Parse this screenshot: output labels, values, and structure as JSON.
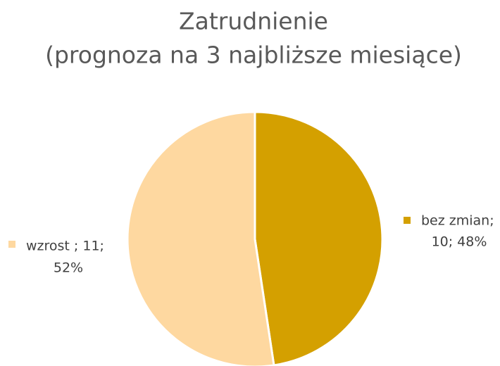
{
  "chart_data": {
    "type": "pie",
    "title": [
      "Zatrudnienie",
      "(prognoza na 3 najbliższe miesiące)"
    ],
    "values": [
      10,
      11
    ],
    "value_labels": [
      [
        "bez zmian;",
        "10; 48%"
      ],
      [
        "wzrost ; 11;",
        "52%"
      ]
    ],
    "colors": [
      "#d4a000",
      "#fed8a0"
    ]
  }
}
